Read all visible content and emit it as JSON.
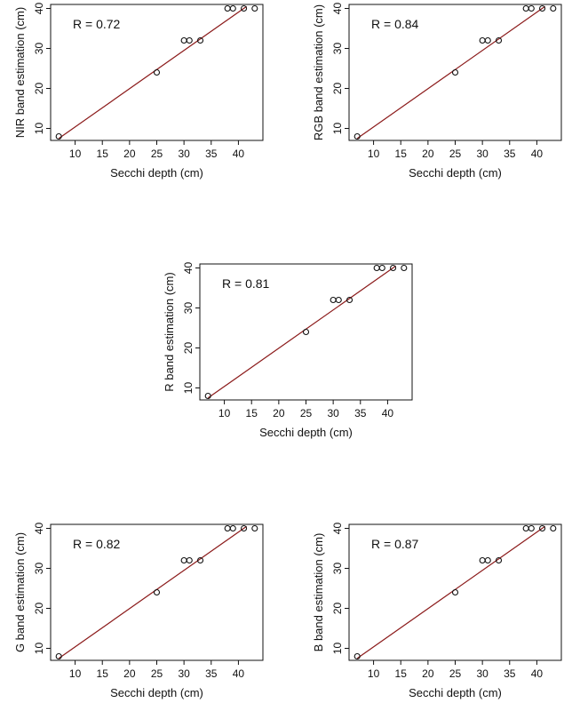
{
  "chart_data": [
    {
      "type": "scatter",
      "panel": "NIR",
      "annotation": "R  = 0.72",
      "xlabel": "Secchi depth (cm)",
      "ylabel": "NIR band estimation (cm)",
      "xlim": [
        5.5,
        44.5
      ],
      "ylim": [
        7,
        41
      ],
      "xticks": [
        10,
        15,
        20,
        25,
        30,
        35,
        40
      ],
      "yticks": [
        10,
        20,
        30,
        40
      ],
      "grid": false,
      "points": [
        {
          "x": 7,
          "y": 8
        },
        {
          "x": 25,
          "y": 24
        },
        {
          "x": 30,
          "y": 32
        },
        {
          "x": 31,
          "y": 32
        },
        {
          "x": 33,
          "y": 32
        },
        {
          "x": 38,
          "y": 40
        },
        {
          "x": 39,
          "y": 40
        },
        {
          "x": 41,
          "y": 40
        },
        {
          "x": 43,
          "y": 40
        }
      ],
      "fit_line": {
        "x": [
          7,
          41.5
        ],
        "y": [
          7.5,
          40.5
        ],
        "color": "#8b1a1a"
      }
    },
    {
      "type": "scatter",
      "panel": "RGB",
      "annotation": "R  = 0.84",
      "xlabel": "Secchi depth (cm)",
      "ylabel": "RGB band estimation (cm)",
      "xlim": [
        5.5,
        44.5
      ],
      "ylim": [
        7,
        41
      ],
      "xticks": [
        10,
        15,
        20,
        25,
        30,
        35,
        40
      ],
      "yticks": [
        10,
        20,
        30,
        40
      ],
      "grid": false,
      "points": [
        {
          "x": 7,
          "y": 8
        },
        {
          "x": 25,
          "y": 24
        },
        {
          "x": 30,
          "y": 32
        },
        {
          "x": 31,
          "y": 32
        },
        {
          "x": 33,
          "y": 32
        },
        {
          "x": 38,
          "y": 40
        },
        {
          "x": 39,
          "y": 40
        },
        {
          "x": 41,
          "y": 40
        },
        {
          "x": 43,
          "y": 40
        }
      ],
      "fit_line": {
        "x": [
          7,
          41.5
        ],
        "y": [
          7.5,
          40.5
        ],
        "color": "#8b1a1a"
      }
    },
    {
      "type": "scatter",
      "panel": "R",
      "annotation": "R  = 0.81",
      "xlabel": "Secchi depth (cm)",
      "ylabel": "R band estimation (cm)",
      "xlim": [
        5.5,
        44.5
      ],
      "ylim": [
        7,
        41
      ],
      "xticks": [
        10,
        15,
        20,
        25,
        30,
        35,
        40
      ],
      "yticks": [
        10,
        20,
        30,
        40
      ],
      "grid": false,
      "points": [
        {
          "x": 7,
          "y": 8
        },
        {
          "x": 25,
          "y": 24
        },
        {
          "x": 30,
          "y": 32
        },
        {
          "x": 31,
          "y": 32
        },
        {
          "x": 33,
          "y": 32
        },
        {
          "x": 38,
          "y": 40
        },
        {
          "x": 39,
          "y": 40
        },
        {
          "x": 41,
          "y": 40
        },
        {
          "x": 43,
          "y": 40
        }
      ],
      "fit_line": {
        "x": [
          7,
          41.5
        ],
        "y": [
          7.5,
          40.5
        ],
        "color": "#8b1a1a"
      }
    },
    {
      "type": "scatter",
      "panel": "G",
      "annotation": "R  = 0.82",
      "xlabel": "Secchi depth (cm)",
      "ylabel": "G band estimation (cm)",
      "xlim": [
        5.5,
        44.5
      ],
      "ylim": [
        7,
        41
      ],
      "xticks": [
        10,
        15,
        20,
        25,
        30,
        35,
        40
      ],
      "yticks": [
        10,
        20,
        30,
        40
      ],
      "grid": false,
      "points": [
        {
          "x": 7,
          "y": 8
        },
        {
          "x": 25,
          "y": 24
        },
        {
          "x": 30,
          "y": 32
        },
        {
          "x": 31,
          "y": 32
        },
        {
          "x": 33,
          "y": 32
        },
        {
          "x": 38,
          "y": 40
        },
        {
          "x": 39,
          "y": 40
        },
        {
          "x": 41,
          "y": 40
        },
        {
          "x": 43,
          "y": 40
        }
      ],
      "fit_line": {
        "x": [
          7,
          41.5
        ],
        "y": [
          7.5,
          40.5
        ],
        "color": "#8b1a1a"
      }
    },
    {
      "type": "scatter",
      "panel": "B",
      "annotation": "R  = 0.87",
      "xlabel": "Secchi depth (cm)",
      "ylabel": "B band estimation (cm)",
      "xlim": [
        5.5,
        44.5
      ],
      "ylim": [
        7,
        41
      ],
      "xticks": [
        10,
        15,
        20,
        25,
        30,
        35,
        40
      ],
      "yticks": [
        10,
        20,
        30,
        40
      ],
      "grid": false,
      "points": [
        {
          "x": 7,
          "y": 8
        },
        {
          "x": 25,
          "y": 24
        },
        {
          "x": 30,
          "y": 32
        },
        {
          "x": 31,
          "y": 32
        },
        {
          "x": 33,
          "y": 32
        },
        {
          "x": 38,
          "y": 40
        },
        {
          "x": 39,
          "y": 40
        },
        {
          "x": 41,
          "y": 40
        },
        {
          "x": 43,
          "y": 40
        }
      ],
      "fit_line": {
        "x": [
          7,
          41.5
        ],
        "y": [
          7.5,
          40.5
        ],
        "color": "#8b1a1a"
      }
    }
  ]
}
